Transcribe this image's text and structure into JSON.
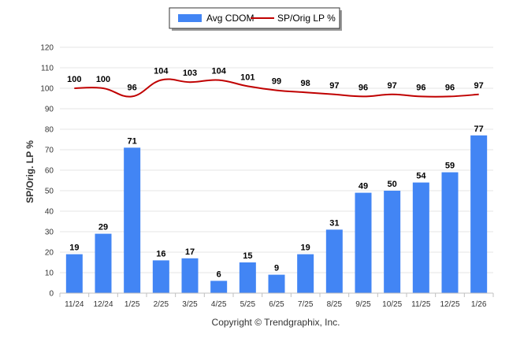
{
  "chart_data": {
    "type": "bar",
    "categories": [
      "11/24",
      "12/24",
      "1/25",
      "2/25",
      "3/25",
      "4/25",
      "5/25",
      "6/25",
      "7/25",
      "8/25",
      "9/25",
      "10/25",
      "11/25",
      "12/25",
      "1/26"
    ],
    "series": [
      {
        "name": "Avg CDOM",
        "type": "bar",
        "color": "#4285f4",
        "values": [
          19,
          29,
          71,
          16,
          17,
          6,
          15,
          9,
          19,
          31,
          49,
          50,
          54,
          59,
          77
        ]
      },
      {
        "name": "SP/Orig LP %",
        "type": "line",
        "color": "#c00000",
        "values": [
          100,
          100,
          96,
          104,
          103,
          104,
          101,
          99,
          98,
          97,
          96,
          97,
          96,
          96,
          97
        ]
      }
    ],
    "ylabel": "SP/Orig. LP %",
    "ylim": [
      0,
      120
    ],
    "yticks": [
      0,
      10,
      20,
      30,
      40,
      50,
      60,
      70,
      80,
      90,
      100,
      110,
      120
    ],
    "grid": true,
    "legend_position": "top-center"
  },
  "footer": "Copyright © Trendgraphix, Inc."
}
